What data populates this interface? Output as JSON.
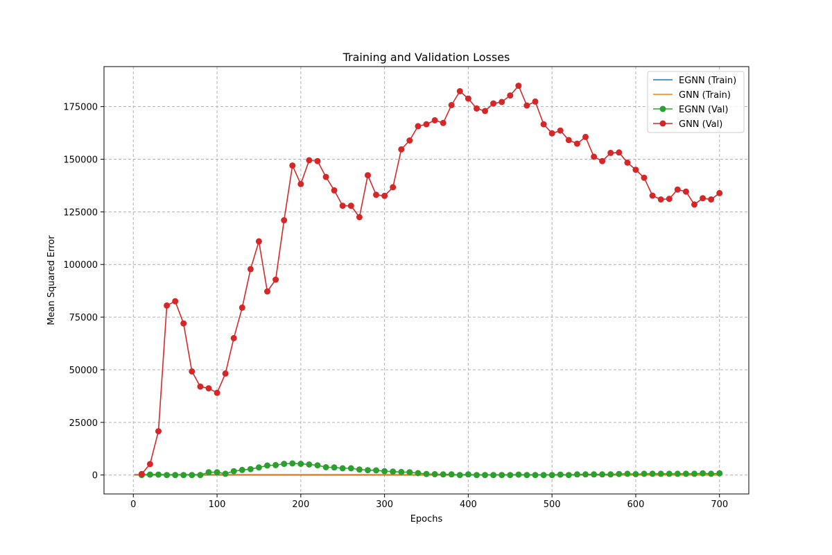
{
  "chart_data": {
    "type": "line",
    "title": "Training and Validation Losses",
    "xlabel": "Epochs",
    "ylabel": "Mean Squared Error",
    "xlim": [
      -35,
      735
    ],
    "ylim": [
      -9000,
      194000
    ],
    "xticks": [
      0,
      100,
      200,
      300,
      400,
      500,
      600,
      700
    ],
    "yticks": [
      0,
      25000,
      50000,
      75000,
      100000,
      125000,
      150000,
      175000
    ],
    "grid": true,
    "legend_position": "top-right",
    "series": [
      {
        "name": "EGNN (Train)",
        "color": "#1f77b4",
        "marker": false,
        "x": [
          1,
          700
        ],
        "y": [
          0,
          0
        ]
      },
      {
        "name": "GNN (Train)",
        "color": "#ff7f0e",
        "marker": false,
        "x": [
          1,
          50,
          100,
          150,
          200,
          250,
          300,
          350,
          400,
          450,
          500,
          550,
          600,
          650,
          700
        ],
        "y": [
          300,
          250,
          250,
          200,
          200,
          200,
          200,
          150,
          150,
          150,
          150,
          150,
          100,
          100,
          100
        ]
      },
      {
        "name": "EGNN (Val)",
        "color": "#2ca02c",
        "marker": true,
        "x": [
          10,
          20,
          30,
          40,
          50,
          60,
          70,
          80,
          90,
          100,
          110,
          120,
          130,
          140,
          150,
          160,
          170,
          180,
          190,
          200,
          210,
          220,
          230,
          240,
          250,
          260,
          270,
          280,
          290,
          300,
          310,
          320,
          330,
          340,
          350,
          360,
          370,
          380,
          390,
          400,
          410,
          420,
          430,
          440,
          450,
          460,
          470,
          480,
          490,
          500,
          510,
          520,
          530,
          540,
          550,
          560,
          570,
          580,
          590,
          600,
          610,
          620,
          630,
          640,
          650,
          660,
          670,
          680,
          690,
          700
        ],
        "y": [
          0,
          200,
          200,
          0,
          0,
          0,
          0,
          0,
          1300,
          1300,
          600,
          1800,
          2400,
          2800,
          3600,
          4500,
          4700,
          5300,
          5500,
          5300,
          5000,
          4600,
          3700,
          3600,
          3200,
          3200,
          2600,
          2300,
          2200,
          1800,
          1600,
          1400,
          1300,
          900,
          500,
          400,
          300,
          300,
          0,
          300,
          0,
          0,
          0,
          0,
          0,
          200,
          0,
          0,
          0,
          0,
          200,
          0,
          300,
          300,
          300,
          300,
          300,
          500,
          600,
          400,
          600,
          600,
          600,
          600,
          600,
          600,
          600,
          800,
          600,
          800
        ]
      },
      {
        "name": "GNN (Val)",
        "color": "#d62728",
        "marker": true,
        "x": [
          10,
          20,
          30,
          40,
          50,
          60,
          70,
          80,
          90,
          100,
          110,
          120,
          130,
          140,
          150,
          160,
          170,
          180,
          190,
          200,
          210,
          220,
          230,
          240,
          250,
          260,
          270,
          280,
          290,
          300,
          310,
          320,
          330,
          340,
          350,
          360,
          370,
          380,
          390,
          400,
          410,
          420,
          430,
          440,
          450,
          460,
          470,
          480,
          490,
          500,
          510,
          520,
          530,
          540,
          550,
          560,
          570,
          580,
          590,
          600,
          610,
          620,
          630,
          640,
          650,
          660,
          670,
          680,
          690,
          700
        ],
        "y": [
          500,
          5200,
          20800,
          80500,
          82500,
          72000,
          49200,
          42000,
          41200,
          39000,
          48200,
          65000,
          79500,
          97800,
          111000,
          87200,
          92800,
          121000,
          147000,
          138200,
          149500,
          149100,
          141600,
          135200,
          127900,
          127900,
          122500,
          142400,
          133100,
          132600,
          136700,
          154700,
          158900,
          165700,
          166600,
          168500,
          167200,
          175700,
          182300,
          178800,
          174100,
          172900,
          176500,
          177200,
          180300,
          184900,
          175500,
          177400,
          166600,
          162300,
          163600,
          159100,
          157400,
          160600,
          151200,
          149100,
          153000,
          153200,
          148400,
          145000,
          141200,
          132700,
          130900,
          131200,
          135600,
          134600,
          128500,
          131500,
          130900,
          133900
        ]
      }
    ]
  }
}
